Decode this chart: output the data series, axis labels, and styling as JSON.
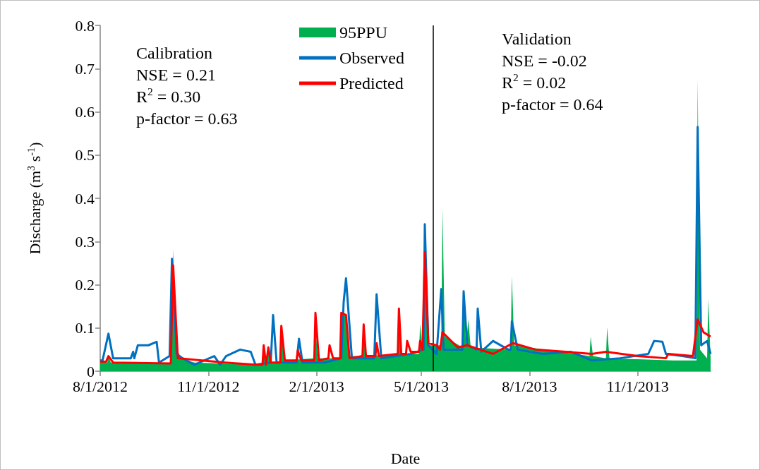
{
  "chart_data": {
    "type": "line",
    "xlabel": "Date",
    "ylabel": "Discharge (m$^{3}$ s$^{-1}$)",
    "xlim": [
      "2012-08-01",
      "2014-01-02"
    ],
    "xticks": [
      {
        "value": "2012-08-01",
        "label": "8/1/2012"
      },
      {
        "value": "2012-11-01",
        "label": "11/1/2012"
      },
      {
        "value": "2013-02-01",
        "label": "2/1/2013"
      },
      {
        "value": "2013-05-01",
        "label": "5/1/2013"
      },
      {
        "value": "2013-08-01",
        "label": "8/1/2013"
      },
      {
        "value": "2013-11-01",
        "label": "11/1/2013"
      }
    ],
    "ylim": [
      0,
      0.8
    ],
    "yticks": [
      0,
      0.1,
      0.2,
      0.3,
      0.4,
      0.5,
      0.6,
      0.7,
      0.8
    ],
    "grid": false,
    "legend": "top",
    "marker": "none",
    "line_style": "solid",
    "series": [
      {
        "name": "95PPU",
        "type": "area",
        "color": "#00b050",
        "x": [
          "2012-08-01",
          "2012-08-07",
          "2012-08-08",
          "2012-08-10",
          "2012-09-30",
          "2012-10-02",
          "2012-10-04",
          "2012-10-08",
          "2012-10-20",
          "2012-12-11",
          "2012-12-17",
          "2012-12-18",
          "2012-12-20",
          "2012-12-22",
          "2012-12-24",
          "2013-01-01",
          "2013-01-02",
          "2013-01-05",
          "2013-01-30",
          "2013-01-31",
          "2013-02-02",
          "2013-02-21",
          "2013-02-22",
          "2013-02-26",
          "2013-03-01",
          "2013-03-12",
          "2013-03-13",
          "2013-03-15",
          "2013-04-11",
          "2013-04-12",
          "2013-04-14",
          "2013-04-29",
          "2013-04-30",
          "2013-05-02",
          "2013-05-04",
          "2013-05-07",
          "2013-05-10",
          "2013-05-11",
          "2013-05-18",
          "2013-05-19",
          "2013-05-21",
          "2013-06-05",
          "2013-06-06",
          "2013-06-08",
          "2013-06-10",
          "2013-06-12",
          "2013-07-16",
          "2013-07-17",
          "2013-07-19",
          "2013-09-21",
          "2013-09-22",
          "2013-09-24",
          "2013-10-05",
          "2013-10-06",
          "2013-10-08",
          "2013-12-01",
          "2013-12-21",
          "2013-12-22",
          "2013-12-24",
          "2013-12-30",
          "2013-12-31",
          "2014-01-02"
        ],
        "values": [
          0.02,
          0.02,
          0.035,
          0.02,
          0.018,
          0.283,
          0.07,
          0.03,
          0.02,
          0.015,
          0.015,
          0.06,
          0.015,
          0.055,
          0.02,
          0.02,
          0.105,
          0.025,
          0.03,
          0.11,
          0.03,
          0.03,
          0.135,
          0.13,
          0.035,
          0.035,
          0.108,
          0.035,
          0.04,
          0.145,
          0.04,
          0.04,
          0.11,
          0.05,
          0.275,
          0.06,
          0.06,
          0.06,
          0.06,
          0.378,
          0.08,
          0.055,
          0.185,
          0.06,
          0.12,
          0.055,
          0.05,
          0.22,
          0.06,
          0.035,
          0.08,
          0.035,
          0.03,
          0.102,
          0.03,
          0.025,
          0.025,
          0.677,
          0.05,
          0.03,
          0.167,
          0.03
        ]
      },
      {
        "name": "Observed",
        "color": "#0070c0",
        "x": [
          "2012-08-01",
          "2012-08-03",
          "2012-08-08",
          "2012-08-12",
          "2012-08-27",
          "2012-08-29",
          "2012-08-30",
          "2012-09-02",
          "2012-09-11",
          "2012-09-18",
          "2012-09-20",
          "2012-09-29",
          "2012-10-01",
          "2012-10-05",
          "2012-10-10",
          "2012-10-20",
          "2012-11-06",
          "2012-11-11",
          "2012-11-16",
          "2012-11-28",
          "2012-12-07",
          "2012-12-11",
          "2012-12-24",
          "2012-12-26",
          "2012-12-29",
          "2013-01-15",
          "2013-01-17",
          "2013-01-20",
          "2013-02-08",
          "2013-02-22",
          "2013-02-24",
          "2013-02-26",
          "2013-03-03",
          "2013-03-22",
          "2013-03-24",
          "2013-03-28",
          "2013-04-22",
          "2013-05-03",
          "2013-05-04",
          "2013-05-07",
          "2013-05-14",
          "2013-05-18",
          "2013-05-20",
          "2013-06-01",
          "2013-06-05",
          "2013-06-06",
          "2013-06-09",
          "2013-06-17",
          "2013-06-18",
          "2013-06-21",
          "2013-07-01",
          "2013-07-14",
          "2013-07-16",
          "2013-07-17",
          "2013-07-22",
          "2013-08-12",
          "2013-09-05",
          "2013-09-23",
          "2013-10-17",
          "2013-11-10",
          "2013-11-15",
          "2013-11-22",
          "2013-11-25",
          "2013-12-09",
          "2013-12-20",
          "2013-12-22",
          "2013-12-25",
          "2013-12-30",
          "2014-01-02"
        ],
        "values": [
          0.025,
          0.025,
          0.087,
          0.03,
          0.03,
          0.045,
          0.03,
          0.06,
          0.06,
          0.068,
          0.02,
          0.035,
          0.26,
          0.04,
          0.03,
          0.015,
          0.035,
          0.015,
          0.035,
          0.05,
          0.045,
          0.015,
          0.02,
          0.13,
          0.02,
          0.02,
          0.075,
          0.02,
          0.02,
          0.03,
          0.16,
          0.215,
          0.03,
          0.03,
          0.178,
          0.03,
          0.04,
          0.05,
          0.34,
          0.06,
          0.04,
          0.19,
          0.05,
          0.05,
          0.05,
          0.185,
          0.06,
          0.05,
          0.145,
          0.045,
          0.07,
          0.05,
          0.05,
          0.115,
          0.05,
          0.04,
          0.045,
          0.025,
          0.03,
          0.04,
          0.07,
          0.068,
          0.04,
          0.035,
          0.03,
          0.565,
          0.06,
          0.07,
          0.04
        ]
      },
      {
        "name": "Predicted",
        "color": "#ff0000",
        "x": [
          "2012-08-01",
          "2012-08-06",
          "2012-08-08",
          "2012-08-12",
          "2012-09-30",
          "2012-10-02",
          "2012-10-06",
          "2012-11-15",
          "2012-12-11",
          "2012-12-17",
          "2012-12-18",
          "2012-12-20",
          "2012-12-22",
          "2012-12-24",
          "2013-01-01",
          "2013-01-02",
          "2013-01-05",
          "2013-01-15",
          "2013-01-16",
          "2013-01-19",
          "2013-01-30",
          "2013-01-31",
          "2013-02-03",
          "2013-02-11",
          "2013-02-12",
          "2013-02-15",
          "2013-02-21",
          "2013-02-22",
          "2013-02-26",
          "2013-03-01",
          "2013-03-12",
          "2013-03-13",
          "2013-03-15",
          "2013-03-23",
          "2013-03-24",
          "2013-03-26",
          "2013-04-11",
          "2013-04-12",
          "2013-04-14",
          "2013-04-18",
          "2013-04-19",
          "2013-04-22",
          "2013-04-29",
          "2013-04-30",
          "2013-05-02",
          "2013-05-04",
          "2013-05-07",
          "2013-05-14",
          "2013-05-17",
          "2013-05-19",
          "2013-06-01",
          "2013-06-09",
          "2013-06-20",
          "2013-07-01",
          "2013-07-18",
          "2013-08-06",
          "2013-09-01",
          "2013-09-23",
          "2013-10-05",
          "2013-11-01",
          "2013-11-25",
          "2013-11-27",
          "2013-12-18",
          "2013-12-22",
          "2013-12-27",
          "2014-01-02"
        ],
        "values": [
          0.022,
          0.022,
          0.035,
          0.02,
          0.018,
          0.245,
          0.03,
          0.02,
          0.015,
          0.015,
          0.06,
          0.015,
          0.055,
          0.02,
          0.02,
          0.105,
          0.025,
          0.025,
          0.048,
          0.025,
          0.025,
          0.135,
          0.025,
          0.03,
          0.06,
          0.03,
          0.03,
          0.135,
          0.13,
          0.03,
          0.035,
          0.108,
          0.035,
          0.035,
          0.065,
          0.035,
          0.04,
          0.145,
          0.04,
          0.04,
          0.07,
          0.045,
          0.045,
          0.07,
          0.05,
          0.275,
          0.065,
          0.06,
          0.05,
          0.09,
          0.055,
          0.06,
          0.05,
          0.04,
          0.065,
          0.05,
          0.045,
          0.04,
          0.045,
          0.035,
          0.03,
          0.04,
          0.035,
          0.12,
          0.09,
          0.08
        ]
      }
    ],
    "ref_lines": [
      {
        "axis": "x",
        "value": "2013-05-11",
        "color": "#000000"
      }
    ],
    "annotations": [
      "Calibration\nNSE = 0.21\nR$^{2}$ = 0.30\np-factor = 0.63",
      "Validation\nNSE = -0.02\nR$^{2}$ = 0.02\np-factor = 0.64"
    ]
  }
}
